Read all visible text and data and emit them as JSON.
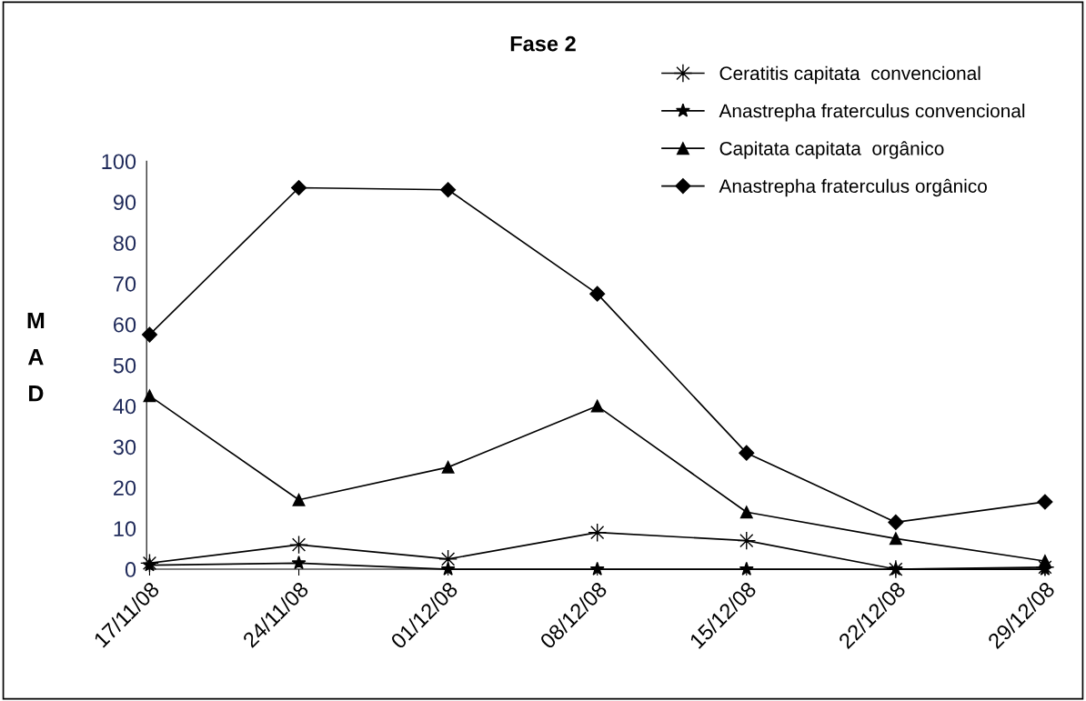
{
  "chart_data": {
    "type": "line",
    "title": "Fase 2",
    "ylabel": "MAD",
    "categories": [
      "17/11/08",
      "24/11/08",
      "01/12/08",
      "08/12/08",
      "15/12/08",
      "22/12/08",
      "29/12/08"
    ],
    "series": [
      {
        "name": "Ceratitis capitata  convencional",
        "color": "#000000",
        "marker": "cross",
        "values": [
          1.5,
          6,
          2.5,
          9,
          7,
          0,
          0.5
        ]
      },
      {
        "name": "Anastrepha fraterculus convencional",
        "color": "#000000",
        "marker": "star",
        "values": [
          1,
          1.5,
          0,
          0,
          0,
          0,
          0
        ]
      },
      {
        "name": "Capitata capitata  orgânico",
        "color": "#000000",
        "marker": "triangle",
        "values": [
          42.5,
          17,
          25,
          40,
          14,
          7.5,
          2
        ]
      },
      {
        "name": "Anastrepha fraterculus orgânico",
        "color": "#000000",
        "marker": "diamond",
        "values": [
          57.5,
          93.5,
          93,
          67.5,
          28.5,
          11.5,
          16.5
        ]
      }
    ],
    "ylim": [
      0,
      100
    ],
    "yticks": [
      0,
      10,
      20,
      30,
      40,
      50,
      60,
      70,
      80,
      90,
      100
    ],
    "grid": false,
    "legend": "top right",
    "line_style": "solid"
  }
}
